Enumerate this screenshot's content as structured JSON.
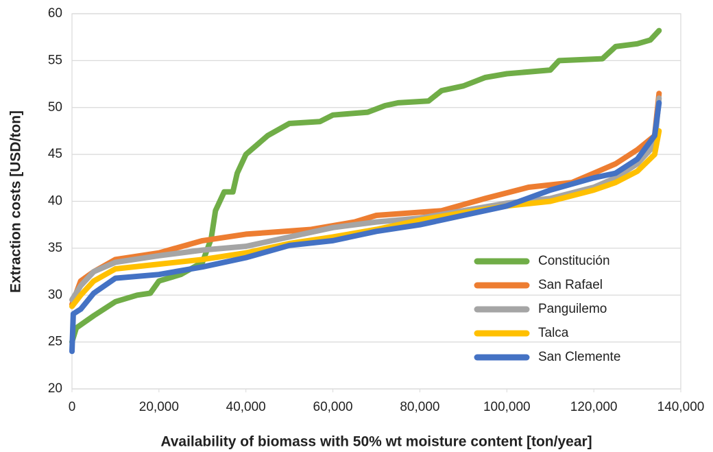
{
  "chart_data": {
    "type": "line",
    "x_label": "Availability of biomass with 50% wt moisture content [ton/year]",
    "y_label": "Extraction costs [USD/ton]",
    "xlim": [
      0,
      140000
    ],
    "xticks": [
      0,
      {
        "value": 20000,
        "label": "20,000"
      },
      {
        "value": 40000,
        "label": "40,000"
      },
      {
        "value": 60000,
        "label": "60,000"
      },
      {
        "value": 80000,
        "label": "80,000"
      },
      {
        "value": 100000,
        "label": "100,000"
      },
      {
        "value": 120000,
        "label": "120,000"
      },
      {
        "value": 140000,
        "label": "140,000"
      }
    ],
    "ylim": [
      20,
      60
    ],
    "yticks": [
      20,
      25,
      30,
      35,
      40,
      45,
      50,
      55,
      60
    ],
    "grid": true,
    "legend": "lower right",
    "series": [
      {
        "name": "Constitución",
        "color": "#70ad47",
        "x": [
          0,
          1000,
          5000,
          10000,
          15000,
          18000,
          20000,
          25000,
          30000,
          32000,
          33000,
          35000,
          37000,
          38000,
          40000,
          45000,
          50000,
          57000,
          60000,
          68000,
          72000,
          75000,
          82000,
          85000,
          90000,
          95000,
          100000,
          110000,
          112000,
          122000,
          125000,
          130000,
          133000,
          135000
        ],
        "values": [
          25,
          26.5,
          27.8,
          29.3,
          30,
          30.2,
          31.5,
          32.2,
          33.5,
          36,
          39,
          41,
          41,
          43,
          45,
          47,
          48.3,
          48.5,
          49.2,
          49.5,
          50.2,
          50.5,
          50.7,
          51.8,
          52.3,
          53.2,
          53.6,
          54,
          55,
          55.2,
          56.5,
          56.8,
          57.2,
          58.2
        ]
      },
      {
        "name": "San Rafael",
        "color": "#ed7d31",
        "x": [
          0,
          2000,
          5000,
          10000,
          20000,
          30000,
          40000,
          55000,
          65000,
          70000,
          85000,
          95000,
          105000,
          115000,
          120000,
          125000,
          130000,
          134000,
          135000
        ],
        "values": [
          29,
          31.5,
          32.5,
          33.8,
          34.5,
          35.8,
          36.5,
          37,
          37.8,
          38.5,
          39,
          40.3,
          41.5,
          42,
          43,
          44,
          45.5,
          47,
          51.5
        ]
      },
      {
        "name": "Panguilemo",
        "color": "#a5a5a5",
        "x": [
          0,
          2000,
          5000,
          10000,
          20000,
          30000,
          40000,
          50000,
          60000,
          70000,
          80000,
          90000,
          100000,
          110000,
          120000,
          125000,
          130000,
          134000,
          135000
        ],
        "values": [
          29.5,
          31,
          32.5,
          33.5,
          34.2,
          34.8,
          35.2,
          36.2,
          37.2,
          37.8,
          38.2,
          39,
          39.8,
          40.3,
          41.5,
          42.5,
          44,
          46,
          51
        ]
      },
      {
        "name": "Talca",
        "color": "#ffc000",
        "x": [
          0,
          2000,
          5000,
          10000,
          20000,
          30000,
          40000,
          50000,
          60000,
          70000,
          80000,
          90000,
          100000,
          110000,
          120000,
          125000,
          130000,
          134000,
          135000
        ],
        "values": [
          28.8,
          30,
          31.5,
          32.8,
          33.3,
          33.8,
          34.5,
          35.5,
          36.2,
          37,
          38,
          38.8,
          39.5,
          40,
          41.2,
          42,
          43.2,
          45,
          47.5
        ]
      },
      {
        "name": "San Clemente",
        "color": "#4472c4",
        "x": [
          0,
          300,
          2000,
          5000,
          10000,
          20000,
          30000,
          40000,
          50000,
          60000,
          70000,
          80000,
          90000,
          100000,
          110000,
          120000,
          125000,
          130000,
          134000,
          135000
        ],
        "values": [
          24,
          28,
          28.5,
          30.2,
          31.8,
          32.2,
          33,
          34,
          35.3,
          35.8,
          36.8,
          37.5,
          38.5,
          39.5,
          41.2,
          42.5,
          43,
          44.5,
          47,
          50.5
        ]
      }
    ]
  }
}
